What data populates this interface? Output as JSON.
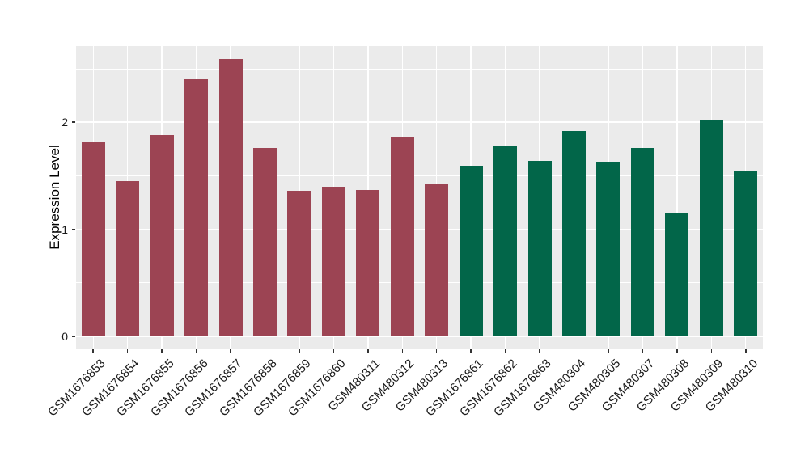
{
  "chart_data": {
    "type": "bar",
    "title": "",
    "xlabel": "",
    "ylabel": "Expression Level",
    "categories": [
      "GSM1676853",
      "GSM1676854",
      "GSM1676855",
      "GSM1676856",
      "GSM1676857",
      "GSM1676858",
      "GSM1676859",
      "GSM1676860",
      "GSM480311",
      "GSM480312",
      "GSM480313",
      "GSM1676861",
      "GSM1676862",
      "GSM1676863",
      "GSM480304",
      "GSM480305",
      "GSM480307",
      "GSM480308",
      "GSM480309",
      "GSM480310"
    ],
    "values": [
      1.82,
      1.45,
      1.88,
      2.4,
      2.59,
      1.76,
      1.36,
      1.4,
      1.37,
      1.86,
      1.43,
      1.59,
      1.78,
      1.64,
      1.92,
      1.63,
      1.76,
      1.15,
      2.02,
      1.54
    ],
    "groups": [
      {
        "name": "group-1",
        "color": "#9C4453",
        "start_index": 0,
        "end_index": 10
      },
      {
        "name": "group-2",
        "color": "#026649",
        "start_index": 11,
        "end_index": 19
      }
    ],
    "y_major_ticks": [
      0,
      1,
      2
    ],
    "y_minor_ticks": [
      0.5,
      1.5,
      2.5
    ],
    "ylim": [
      0,
      2.71
    ],
    "grid": true,
    "legend": false,
    "panel_background": "#EBEBEB",
    "grid_color": "#FFFFFF",
    "tick_color": "#333333",
    "text_color": "#1A1A1A",
    "x_label_angle_deg": 45
  }
}
